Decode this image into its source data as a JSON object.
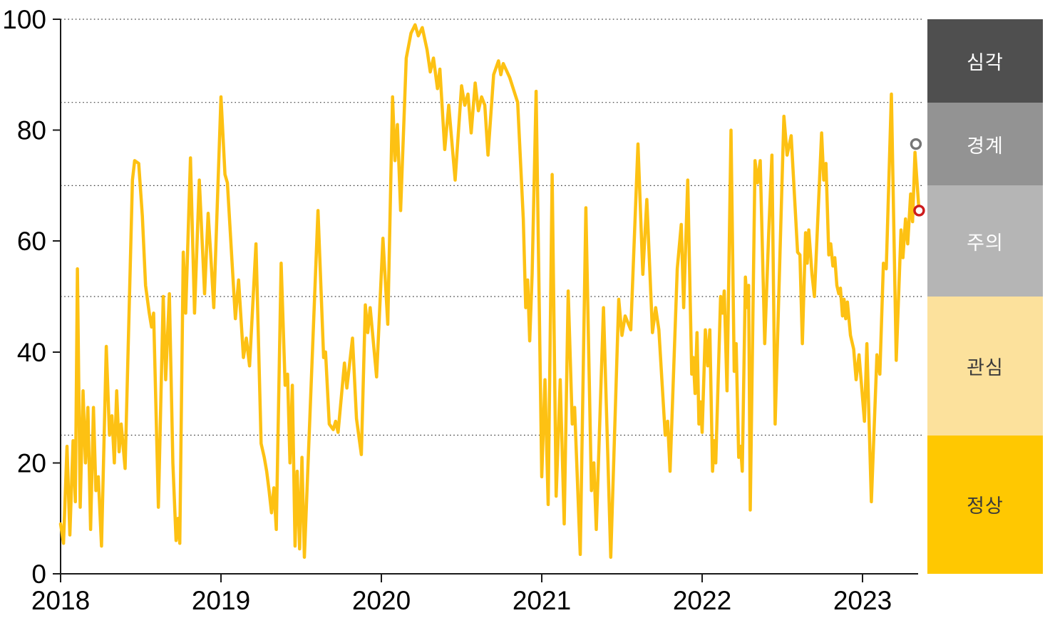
{
  "chart_data": {
    "type": "line",
    "title": "",
    "x_axis": {
      "tick_labels": [
        "2018",
        "2019",
        "2020",
        "2021",
        "2022",
        "2023"
      ],
      "tick_values": [
        2018,
        2019,
        2020,
        2021,
        2022,
        2023
      ],
      "range": [
        2018,
        2023.45
      ]
    },
    "y_axis": {
      "tick_labels": [
        "0",
        "20",
        "40",
        "60",
        "80",
        "100"
      ],
      "tick_values": [
        0,
        20,
        40,
        60,
        80,
        100
      ],
      "range": [
        0,
        100
      ]
    },
    "grid": {
      "dotted_gridlines_at": [
        25,
        50,
        70,
        85,
        100
      ],
      "color": "#3a3a3a"
    },
    "axis_color": "#1a1a1a",
    "series": [
      {
        "name": "stress-index",
        "color": "#FDC113",
        "x": [
          2018.0,
          2018.018,
          2018.04,
          2018.058,
          2018.078,
          2018.092,
          2018.105,
          2018.122,
          2018.14,
          2018.155,
          2018.17,
          2018.187,
          2018.205,
          2018.22,
          2018.235,
          2018.255,
          2018.285,
          2018.305,
          2018.32,
          2018.335,
          2018.35,
          2018.365,
          2018.378,
          2018.402,
          2018.448,
          2018.462,
          2018.487,
          2018.51,
          2018.53,
          2018.553,
          2018.567,
          2018.58,
          2018.61,
          2018.64,
          2018.655,
          2018.678,
          2018.7,
          2018.72,
          2018.732,
          2018.743,
          2018.765,
          2018.78,
          2018.81,
          2018.835,
          2018.865,
          2018.898,
          2018.92,
          2018.935,
          2018.955,
          2019.0,
          2019.025,
          2019.04,
          2019.09,
          2019.11,
          2019.14,
          2019.158,
          2019.178,
          2019.218,
          2019.25,
          2019.27,
          2019.285,
          2019.3,
          2019.315,
          2019.33,
          2019.345,
          2019.375,
          2019.4,
          2019.415,
          2019.43,
          2019.445,
          2019.462,
          2019.475,
          2019.49,
          2019.505,
          2019.52,
          2019.605,
          2019.64,
          2019.652,
          2019.675,
          2019.7,
          2019.715,
          2019.73,
          2019.77,
          2019.785,
          2019.82,
          2019.845,
          2019.875,
          2019.9,
          2019.915,
          2019.93,
          2019.97,
          2020.01,
          2020.04,
          2020.07,
          2020.085,
          2020.1,
          2020.12,
          2020.155,
          2020.185,
          2020.21,
          2020.23,
          2020.255,
          2020.285,
          2020.305,
          2020.325,
          2020.35,
          2020.365,
          2020.395,
          2020.42,
          2020.46,
          2020.5,
          2020.52,
          2020.54,
          2020.56,
          2020.585,
          2020.605,
          2020.625,
          2020.645,
          2020.665,
          2020.7,
          2020.73,
          2020.745,
          2020.76,
          2020.8,
          2020.85,
          2020.885,
          2020.9,
          2020.912,
          2020.925,
          2020.94,
          2020.965,
          2021.0,
          2021.02,
          2021.04,
          2021.065,
          2021.09,
          2021.115,
          2021.14,
          2021.165,
          2021.19,
          2021.205,
          2021.24,
          2021.275,
          2021.31,
          2021.325,
          2021.34,
          2021.385,
          2021.43,
          2021.48,
          2021.5,
          2021.52,
          2021.555,
          2021.6,
          2021.63,
          2021.655,
          2021.69,
          2021.71,
          2021.73,
          2021.77,
          2021.785,
          2021.8,
          2021.845,
          2021.87,
          2021.885,
          2021.91,
          2021.935,
          2021.945,
          2021.956,
          2021.968,
          2021.98,
          2021.99,
          2022.0,
          2022.02,
          2022.035,
          2022.048,
          2022.065,
          2022.075,
          2022.085,
          2022.115,
          2022.127,
          2022.138,
          2022.155,
          2022.18,
          2022.2,
          2022.212,
          2022.228,
          2022.24,
          2022.25,
          2022.27,
          2022.282,
          2022.29,
          2022.3,
          2022.33,
          2022.345,
          2022.362,
          2022.39,
          2022.415,
          2022.435,
          2022.455,
          2022.51,
          2022.53,
          2022.555,
          2022.595,
          2022.61,
          2022.625,
          2022.645,
          2022.655,
          2022.665,
          2022.685,
          2022.7,
          2022.745,
          2022.758,
          2022.772,
          2022.79,
          2022.802,
          2022.815,
          2022.827,
          2022.84,
          2022.852,
          2022.862,
          2022.875,
          2022.885,
          2022.895,
          2022.906,
          2022.925,
          2022.945,
          2022.96,
          2022.978,
          2023.012,
          2023.027,
          2023.055,
          2023.09,
          2023.108,
          2023.13,
          2023.148,
          2023.18,
          2023.21,
          2023.24,
          2023.252,
          2023.268,
          2023.282,
          2023.3,
          2023.312,
          2023.327,
          2023.352
        ],
        "y": [
          9,
          5.5,
          23,
          7,
          24,
          13,
          55,
          12,
          33,
          20,
          30,
          8,
          30,
          15,
          17.5,
          5,
          41,
          25,
          28.5,
          20,
          33,
          22,
          27,
          19,
          71,
          74.5,
          74,
          64.5,
          52,
          47,
          44.5,
          47,
          12,
          50,
          35,
          50.5,
          20,
          6,
          10,
          5.5,
          58,
          47,
          75,
          47,
          71,
          50.5,
          65,
          58,
          48,
          86,
          72,
          70.5,
          46,
          53,
          39,
          42.5,
          37.5,
          59.5,
          23.5,
          21,
          18.5,
          15,
          11,
          15.5,
          8,
          56,
          34,
          36,
          20,
          34,
          5,
          18.5,
          4.5,
          21,
          3,
          65.5,
          39,
          40,
          27,
          26,
          27.5,
          25.5,
          38,
          33.5,
          42.5,
          28,
          21.5,
          48.5,
          43.5,
          48,
          35.5,
          60.5,
          45,
          86,
          74.5,
          81,
          65.5,
          93,
          97.5,
          99,
          97,
          98.5,
          94.5,
          90.5,
          93,
          87.5,
          91,
          76.5,
          84.5,
          71,
          88,
          84.5,
          86.5,
          79.5,
          88.5,
          83.5,
          86,
          84.5,
          75.5,
          90,
          92.5,
          90,
          92,
          89.5,
          85,
          64,
          48,
          53,
          42,
          54,
          87,
          17.5,
          35,
          12.5,
          72,
          14,
          35,
          9,
          51,
          27,
          30,
          3.5,
          66,
          15,
          20,
          8,
          48,
          3,
          49.5,
          43,
          46.5,
          44,
          77.5,
          54,
          67.5,
          43.5,
          48,
          44,
          25,
          27.5,
          18.5,
          55,
          63,
          48,
          71,
          36,
          39,
          32.5,
          43.5,
          27,
          31,
          25.5,
          44,
          37.5,
          44,
          18.5,
          24,
          20,
          50,
          47,
          51,
          33,
          80,
          36.5,
          41.5,
          21,
          23,
          18.5,
          53.5,
          48,
          52,
          11.5,
          74.5,
          70.5,
          74.5,
          41.5,
          61.5,
          75.5,
          27,
          82.5,
          75.5,
          79,
          58,
          57.5,
          41.5,
          61.5,
          56,
          62,
          54,
          50,
          79.5,
          71,
          74,
          57.5,
          59.5,
          55.5,
          57,
          52,
          50.5,
          51.5,
          46.5,
          49.5,
          46,
          49,
          43,
          40.5,
          35,
          39.5,
          27.5,
          41.5,
          13,
          39.5,
          36,
          56,
          55,
          86.5,
          38.5,
          62,
          57,
          64,
          59.5,
          68.5,
          63.5,
          76,
          65.5
        ]
      }
    ],
    "end_markers": [
      {
        "name": "previous-peak-marker",
        "x": 2023.333,
        "y": 77.5,
        "ring_color": "#767676"
      },
      {
        "name": "latest-value-marker",
        "x": 2023.353,
        "y": 65.5,
        "ring_color": "#CE1B1C"
      }
    ],
    "alert_bands": [
      {
        "label": "심각",
        "from": 85,
        "to": 100,
        "color": "#4F4F4F",
        "text_color": "#FFFFFF"
      },
      {
        "label": "경계",
        "from": 70,
        "to": 85,
        "color": "#939393",
        "text_color": "#FFFFFF"
      },
      {
        "label": "주의",
        "from": 50,
        "to": 70,
        "color": "#B5B5B5",
        "text_color": "#FFFFFF"
      },
      {
        "label": "관심",
        "from": 25,
        "to": 50,
        "color": "#FCE19C",
        "text_color": "#3A3A3A"
      },
      {
        "label": "정상",
        "from": 0,
        "to": 25,
        "color": "#FFC801",
        "text_color": "#3A3A3A"
      }
    ],
    "legend_position": "right"
  }
}
